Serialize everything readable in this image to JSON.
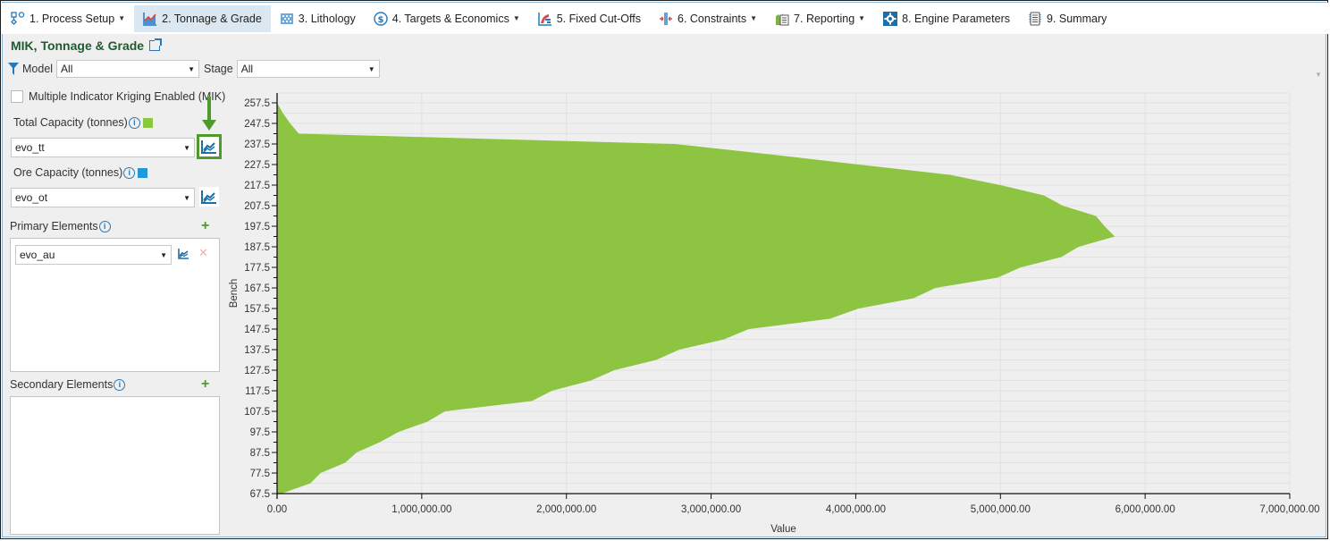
{
  "tabs": [
    {
      "label": "1. Process Setup",
      "icon": "process-flow-icon",
      "dropdown": true,
      "active": false
    },
    {
      "label": "2. Tonnage & Grade",
      "icon": "area-chart-icon",
      "dropdown": false,
      "active": true
    },
    {
      "label": "3. Lithology",
      "icon": "lithology-grid-icon",
      "dropdown": false,
      "active": false
    },
    {
      "label": "4. Targets & Economics",
      "icon": "dollar-icon",
      "dropdown": true,
      "active": false
    },
    {
      "label": "5. Fixed Cut-Offs",
      "icon": "cutoff-chart-icon",
      "dropdown": false,
      "active": false
    },
    {
      "label": "6. Constraints",
      "icon": "constraints-icon",
      "dropdown": true,
      "active": false
    },
    {
      "label": "7. Reporting",
      "icon": "report-icon",
      "dropdown": true,
      "active": false
    },
    {
      "label": "8. Engine Parameters",
      "icon": "gear-icon",
      "dropdown": false,
      "active": false
    },
    {
      "label": "9. Summary",
      "icon": "summary-doc-icon",
      "dropdown": false,
      "active": false
    }
  ],
  "header": {
    "title": "MIK, Tonnage & Grade"
  },
  "filters": {
    "model_label": "Model",
    "model_value": "All",
    "stage_label": "Stage",
    "stage_value": "All"
  },
  "left_panel": {
    "mik_label": "Multiple Indicator Kriging Enabled (MIK)",
    "mik_checked": false,
    "total_capacity_label": "Total Capacity (tonnes)",
    "total_capacity_value": "evo_tt",
    "total_capacity_color": "#8dc63f",
    "ore_capacity_label": "Ore Capacity (tonnes)",
    "ore_capacity_value": "evo_ot",
    "ore_capacity_color": "#1f9ad6",
    "primary_elements_label": "Primary Elements",
    "primary_elements": [
      "evo_au"
    ],
    "secondary_elements_label": "Secondary Elements",
    "secondary_elements": []
  },
  "colors": {
    "accent_green": "#4e9a2a",
    "area_fill": "#8dc442",
    "link_blue": "#2878b8"
  },
  "chart_data": {
    "type": "area",
    "orientation": "horizontal",
    "title": "",
    "xlabel": "Value",
    "ylabel": "Bench",
    "xlim": [
      0,
      7000000
    ],
    "ylim": [
      67.5,
      257.5
    ],
    "grid": true,
    "x_ticks": [
      "0.00",
      "1,000,000.00",
      "2,000,000.00",
      "3,000,000.00",
      "4,000,000.00",
      "5,000,000.00",
      "6,000,000.00",
      "7,000,000.00"
    ],
    "y_ticks": [
      "257.5",
      "247.5",
      "237.5",
      "227.5",
      "217.5",
      "207.5",
      "197.5",
      "187.5",
      "177.5",
      "167.5",
      "157.5",
      "147.5",
      "137.5",
      "127.5",
      "117.5",
      "107.5",
      "97.5",
      "87.5",
      "77.5",
      "67.5"
    ],
    "series": [
      {
        "name": "evo_tt",
        "color": "#8dc442",
        "points": [
          [
            257.5,
            0
          ],
          [
            252.5,
            40000
          ],
          [
            247.5,
            90000
          ],
          [
            242.5,
            150000
          ],
          [
            237.5,
            2750000
          ],
          [
            232.5,
            3400000
          ],
          [
            227.5,
            4020000
          ],
          [
            222.5,
            4650000
          ],
          [
            217.5,
            5000000
          ],
          [
            212.5,
            5300000
          ],
          [
            207.5,
            5430000
          ],
          [
            202.5,
            5660000
          ],
          [
            197.5,
            5720000
          ],
          [
            192.5,
            5790000
          ],
          [
            187.5,
            5540000
          ],
          [
            182.5,
            5420000
          ],
          [
            177.5,
            5140000
          ],
          [
            172.5,
            4980000
          ],
          [
            167.5,
            4550000
          ],
          [
            162.5,
            4400000
          ],
          [
            157.5,
            4020000
          ],
          [
            152.5,
            3820000
          ],
          [
            147.5,
            3260000
          ],
          [
            142.5,
            3090000
          ],
          [
            137.5,
            2780000
          ],
          [
            132.5,
            2620000
          ],
          [
            127.5,
            2330000
          ],
          [
            122.5,
            2170000
          ],
          [
            117.5,
            1900000
          ],
          [
            112.5,
            1760000
          ],
          [
            107.5,
            1160000
          ],
          [
            102.5,
            1040000
          ],
          [
            97.5,
            840000
          ],
          [
            92.5,
            710000
          ],
          [
            87.5,
            550000
          ],
          [
            82.5,
            470000
          ],
          [
            77.5,
            300000
          ],
          [
            72.5,
            230000
          ],
          [
            67.5,
            30000
          ]
        ]
      }
    ]
  }
}
